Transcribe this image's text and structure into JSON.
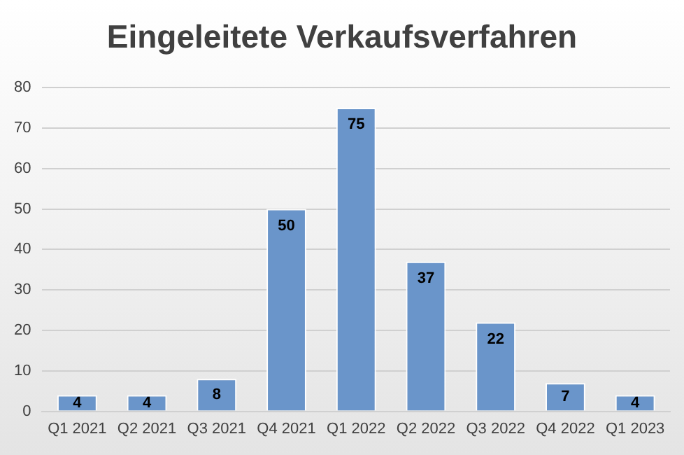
{
  "chart_data": {
    "type": "bar",
    "title": "Eingeleitete Verkaufsverfahren",
    "categories": [
      "Q1 2021",
      "Q2 2021",
      "Q3 2021",
      "Q4 2021",
      "Q1 2022",
      "Q2 2022",
      "Q3 2022",
      "Q4 2022",
      "Q1 2023"
    ],
    "values": [
      4,
      4,
      8,
      50,
      75,
      37,
      22,
      7,
      4
    ],
    "color": "#6a95ca",
    "ylim": [
      0,
      80
    ],
    "yticks": [
      0,
      10,
      20,
      30,
      40,
      50,
      60,
      70,
      80
    ],
    "grid": "y",
    "data_labels": true,
    "legend": false
  }
}
